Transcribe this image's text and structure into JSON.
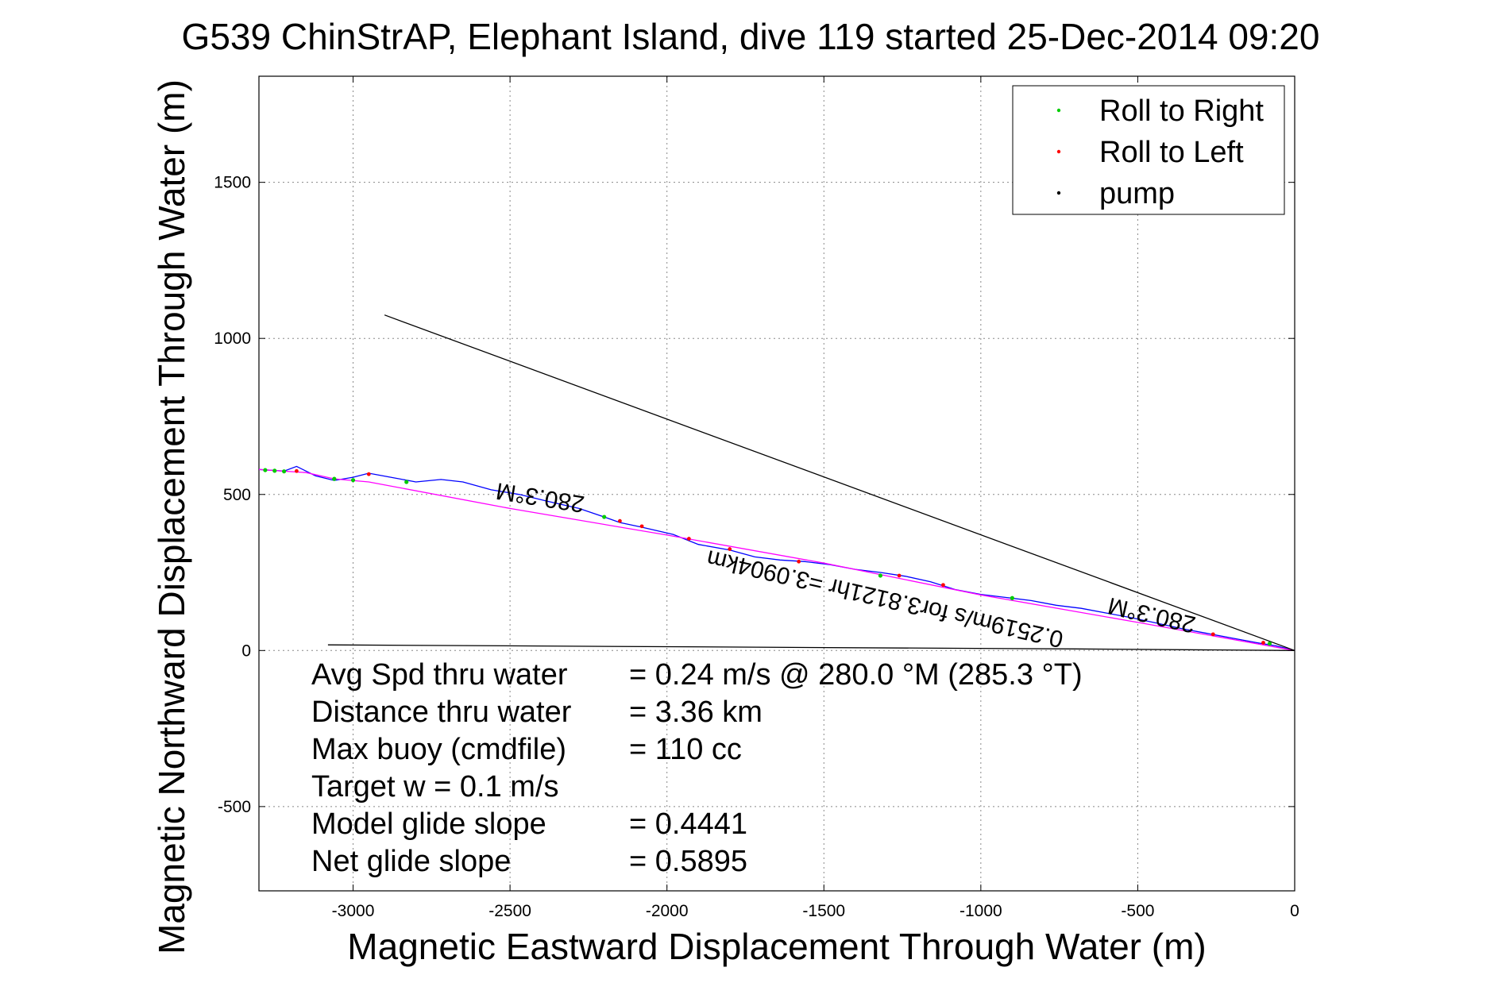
{
  "chart_data": {
    "type": "line",
    "title": "G539 ChinStrAP, Elephant Island, dive 119 started 25-Dec-2014 09:20",
    "xlabel": "Magnetic Eastward Displacement Through Water (m)",
    "ylabel": "Magnetic Northward Displacement Through Water (m)",
    "xlim": [
      -3300,
      0
    ],
    "ylim": [
      -770,
      1840
    ],
    "xticks": [
      -3000,
      -2500,
      -2000,
      -1500,
      -1000,
      -500,
      0
    ],
    "yticks": [
      -500,
      0,
      500,
      1000,
      1500
    ],
    "xtick_labels": [
      "-3000",
      "-2500",
      "-2000",
      "-1500",
      "-1000",
      "-500",
      "0"
    ],
    "ytick_labels": [
      "-500",
      "0",
      "500",
      "1000",
      "1500"
    ],
    "grid": true,
    "legend_position": "top-right",
    "legend": [
      {
        "label": "Roll to Right",
        "color": "#00cc00"
      },
      {
        "label": "Roll to Left",
        "color": "#ff0000"
      },
      {
        "label": "pump",
        "color": "#000000"
      }
    ],
    "series": [
      {
        "color": "#0000ff",
        "x": [
          -3300,
          -3220,
          -3180,
          -3120,
          -3060,
          -3000,
          -2950,
          -2880,
          -2800,
          -2720,
          -2650,
          -2560,
          -2470,
          -2380,
          -2280,
          -2200,
          -2150,
          -2080,
          -1980,
          -1900,
          -1800,
          -1720,
          -1640,
          -1560,
          -1480,
          -1400,
          -1320,
          -1240,
          -1160,
          -1080,
          -1000,
          -920,
          -840,
          -760,
          -680,
          -600,
          -520,
          -440,
          -360,
          -280,
          -200,
          -120,
          -60,
          0
        ],
        "y": [
          580,
          575,
          590,
          560,
          545,
          555,
          568,
          555,
          540,
          548,
          540,
          515,
          500,
          478,
          455,
          428,
          410,
          395,
          372,
          340,
          322,
          300,
          290,
          285,
          275,
          260,
          250,
          238,
          220,
          195,
          180,
          170,
          160,
          145,
          135,
          120,
          105,
          88,
          70,
          55,
          40,
          25,
          15,
          0
        ]
      },
      {
        "color": "#ff00ff",
        "x": [
          -3300,
          -3150,
          -3060,
          -2950,
          -2500,
          -2000,
          -1500,
          -1000,
          -500,
          0
        ],
        "y": [
          580,
          570,
          550,
          540,
          455,
          370,
          280,
          178,
          90,
          0
        ]
      },
      {
        "color": "#000000",
        "x": [
          -2900,
          0
        ],
        "y": [
          1075,
          0
        ]
      },
      {
        "color": "#000000",
        "x": [
          -3080,
          -700,
          0
        ],
        "y": [
          18,
          5,
          0
        ]
      }
    ],
    "roll_right_points": {
      "x": [
        -3280,
        -3250,
        -3220,
        -3060,
        -3000,
        -2830,
        -2200,
        -1320,
        -900,
        -80
      ],
      "y": [
        578,
        576,
        574,
        550,
        546,
        540,
        428,
        240,
        168,
        22
      ]
    },
    "roll_left_points": {
      "x": [
        -3180,
        -2950,
        -2150,
        -2080,
        -1930,
        -1800,
        -1580,
        -1260,
        -1120,
        -260,
        -100
      ],
      "y": [
        575,
        565,
        415,
        398,
        358,
        325,
        285,
        240,
        210,
        52,
        25
      ]
    },
    "annotations": [
      {
        "text": "280.3°M",
        "x": -2400,
        "y": 515
      },
      {
        "text": "0.2519m/s for3.8121hr =3.0904km",
        "x": -1300,
        "y": 190
      },
      {
        "text": "280.3°M",
        "x": -450,
        "y": 138
      }
    ],
    "stats": [
      {
        "label": "Avg Spd thru water",
        "value": "=  0.24 m/s @ 280.0 °M (285.3 °T)"
      },
      {
        "label": "Distance thru water",
        "value": "=  3.36 km"
      },
      {
        "label": "Max buoy (cmdfile)",
        "value": "= 110 cc"
      },
      {
        "label": "Target w    = 0.1 m/s",
        "value": ""
      },
      {
        "label": "Model glide slope",
        "value": "= 0.4441"
      },
      {
        "label": "Net glide slope",
        "value": "= 0.5895"
      }
    ]
  }
}
